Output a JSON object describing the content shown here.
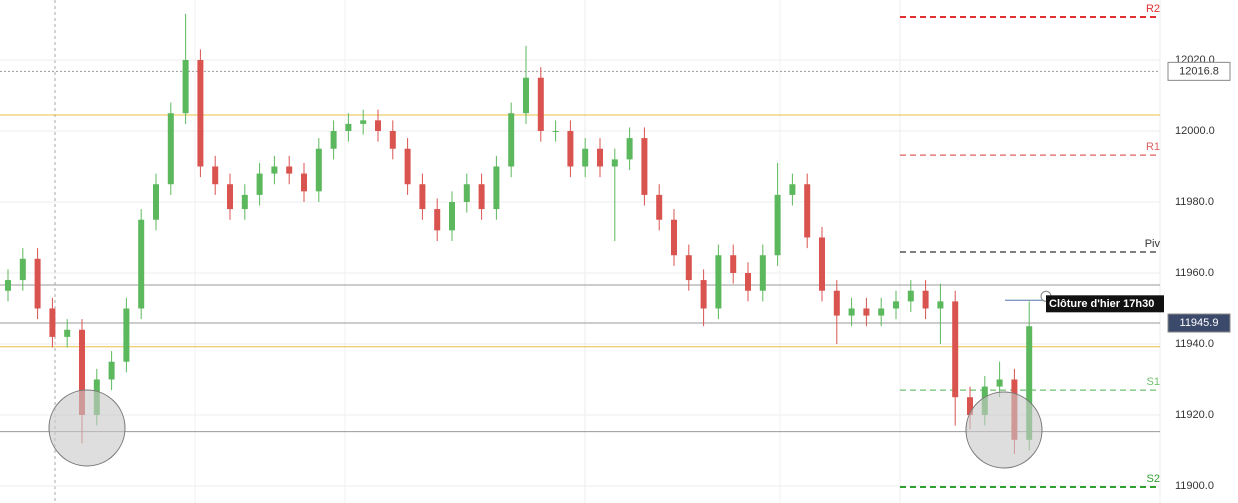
{
  "chart_data": {
    "type": "candlestick",
    "open": [
      11955,
      11958,
      11964,
      11950,
      11942,
      11944,
      11920,
      11930,
      11935,
      11950,
      11975,
      11985,
      12005,
      12020,
      11990,
      11985,
      11978,
      11982,
      11988,
      11990,
      11988,
      11983,
      11995,
      12000,
      12002,
      12003,
      12000,
      11995,
      11985,
      11978,
      11972,
      11980,
      11985,
      11978,
      11990,
      12005,
      12015,
      12000,
      12000,
      11990,
      11995,
      11990,
      11992,
      11998,
      11982,
      11975,
      11965,
      11958,
      11950,
      11965,
      11960,
      11955,
      11965,
      11982,
      11985,
      11970,
      11955,
      11948,
      11950,
      11948,
      11950,
      11952,
      11955,
      11950,
      11952,
      11925,
      11920,
      11928,
      11930,
      11913
    ],
    "high": [
      11961,
      11967,
      11967,
      11953,
      11947,
      11947,
      11933,
      11938,
      11953,
      11978,
      11988,
      12008,
      12033,
      12023,
      11993,
      11988,
      11985,
      11991,
      11993,
      11993,
      11991,
      11998,
      12003,
      12005,
      12006,
      12006,
      12003,
      11998,
      11988,
      11981,
      11983,
      11988,
      11988,
      11993,
      12008,
      12024,
      12018,
      12003,
      12003,
      11998,
      11998,
      11995,
      12001,
      12001,
      11985,
      11978,
      11968,
      11961,
      11968,
      11968,
      11963,
      11968,
      11991,
      11988,
      11988,
      11973,
      11958,
      11953,
      11953,
      11953,
      11955,
      11958,
      11958,
      11957,
      11955,
      11928,
      11931,
      11935,
      11933,
      11952
    ],
    "low": [
      11952,
      11955,
      11947,
      11939,
      11939,
      11912,
      11917,
      11927,
      11932,
      11947,
      11972,
      11982,
      12002,
      11987,
      11982,
      11975,
      11975,
      11979,
      11985,
      11985,
      11980,
      11980,
      11992,
      11997,
      11999,
      11997,
      11992,
      11982,
      11975,
      11969,
      11969,
      11977,
      11975,
      11975,
      11987,
      12002,
      11997,
      11997,
      11987,
      11987,
      11987,
      11969,
      11989,
      11979,
      11972,
      11962,
      11955,
      11945,
      11947,
      11957,
      11952,
      11952,
      11962,
      11979,
      11967,
      11952,
      11940,
      11945,
      11945,
      11945,
      11947,
      11949,
      11947,
      11940,
      11917,
      11916,
      11917,
      11925,
      11909,
      11910
    ],
    "close": [
      11958,
      11964,
      11950,
      11942,
      11944,
      11920,
      11930,
      11935,
      11950,
      11975,
      11985,
      12005,
      12020,
      11990,
      11985,
      11978,
      11982,
      11988,
      11990,
      11988,
      11983,
      11995,
      12000,
      12002,
      12003,
      12000,
      11995,
      11985,
      11978,
      11972,
      11980,
      11985,
      11978,
      11990,
      12005,
      12015,
      12000,
      12000,
      11990,
      11995,
      11990,
      11992,
      11998,
      11982,
      11975,
      11965,
      11958,
      11950,
      11965,
      11960,
      11955,
      11965,
      11982,
      11985,
      11970,
      11955,
      11948,
      11950,
      11948,
      11950,
      11952,
      11955,
      11950,
      11952,
      11925,
      11920,
      11928,
      11930,
      11913,
      11945
    ],
    "up_color": "#5cb85c",
    "down_color": "#d9534f",
    "ylim": [
      11895.2,
      12036.9
    ],
    "yticks": [
      {
        "value": 11900,
        "label": "11900.0"
      },
      {
        "value": 11920,
        "label": "11920.0"
      },
      {
        "value": 11940,
        "label": "11940.0"
      },
      {
        "value": 11960,
        "label": "11960.0"
      },
      {
        "value": 11980,
        "label": "11980.0"
      },
      {
        "value": 12000,
        "label": "12000.0"
      },
      {
        "value": 12020,
        "label": "12020.0"
      }
    ],
    "pivots": [
      {
        "name": "R2",
        "value": 12032.1,
        "color": "#e03030"
      },
      {
        "name": "R1",
        "value": 11993.2,
        "color": "#e06060"
      },
      {
        "name": "Piv",
        "value": 11965.9,
        "color": "#333333"
      },
      {
        "name": "S1",
        "value": 11927.0,
        "color": "#70c070"
      },
      {
        "name": "S2",
        "value": 11899.7,
        "color": "#30a030"
      }
    ],
    "lines": [
      {
        "value": 12004.5,
        "color": "#e8c040"
      },
      {
        "value": 11939.2,
        "color": "#e8c040"
      },
      {
        "value": 11956.6,
        "color": "#999999"
      },
      {
        "value": 11915.3,
        "color": "#999999"
      }
    ],
    "price_labels": [
      {
        "value": 12016.8,
        "fill": "#ffffff",
        "color": "#333333"
      },
      {
        "value": 11945.9,
        "fill": "#3b4a6b",
        "color": "#ffffff"
      }
    ],
    "annotation": {
      "text": "Clôture d'hier 17h30",
      "value": 11952.3
    }
  }
}
